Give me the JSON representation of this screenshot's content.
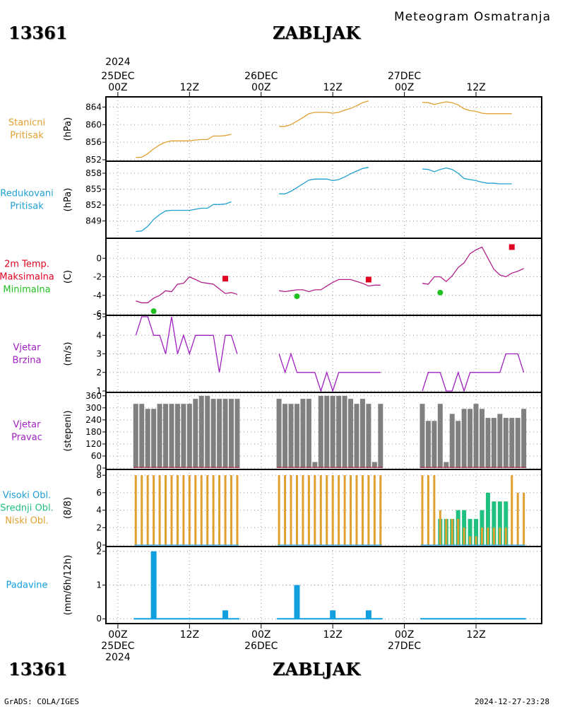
{
  "header": {
    "station_id": "13361",
    "station_name": "ZABLJAK",
    "subtitle": "Meteogram Osmatranja"
  },
  "footer": {
    "credit": "GrADS: COLA/IGES",
    "timestamp": "2024-12-27-23:28"
  },
  "colors": {
    "pressure": "#e0a030",
    "reduced": "#20a0d0",
    "max_temp": "#e00020",
    "min_temp": "#20c020",
    "wind": "#a020c0",
    "bars_gray": "#808080",
    "high_cloud": "#20a0d0",
    "mid_cloud": "#20c080",
    "low_cloud": "#e0a030",
    "precip": "#10a0e0"
  },
  "time_axis": {
    "top_year": "2024",
    "top_labels": [
      "25DEC\n00Z",
      "12Z",
      "26DEC\n00Z",
      "12Z",
      "27DEC\n00Z",
      "12Z"
    ],
    "bottom_labels": [
      "00Z\n25DEC\n2024",
      "12Z",
      "00Z\n26DEC",
      "12Z",
      "00Z\n27DEC",
      "12Z"
    ],
    "hours": [
      0,
      12,
      24,
      36,
      48,
      60
    ]
  },
  "chart_data": [
    {
      "id": "station_pressure",
      "type": "line",
      "label_lines": [
        "Stanicni",
        "Pritisak"
      ],
      "unit": "(hPa)",
      "ylim": [
        852,
        866
      ],
      "yticks": [
        852,
        856,
        860,
        864
      ],
      "series": [
        {
          "hours": [
            3,
            4,
            5,
            6,
            7,
            8,
            9,
            10,
            11,
            12,
            13,
            14,
            15,
            16,
            17,
            18,
            19,
            20,
            27,
            28,
            29,
            30,
            31,
            32,
            33,
            34,
            35,
            36,
            37,
            38,
            39,
            40,
            41,
            42,
            43,
            44,
            51,
            52,
            53,
            54,
            55,
            56,
            57,
            58,
            59,
            60,
            61,
            62,
            63,
            64,
            65,
            66,
            67,
            68
          ],
          "values": [
            852.5,
            852.6,
            853.4,
            854.5,
            855.4,
            856.0,
            856.3,
            856.3,
            856.3,
            856.3,
            856.5,
            856.6,
            856.6,
            857.4,
            857.4,
            857.5,
            857.8,
            null,
            859.6,
            859.6,
            860.0,
            860.8,
            861.6,
            862.5,
            862.8,
            862.8,
            862.8,
            862.6,
            862.8,
            863.3,
            863.7,
            864.3,
            865.0,
            865.4,
            null,
            null,
            865.1,
            865.0,
            864.6,
            864.9,
            865.2,
            865.0,
            864.5,
            863.6,
            863.2,
            863.0,
            862.6,
            862.5,
            862.5,
            862.5,
            862.5,
            862.5,
            null,
            null
          ]
        }
      ]
    },
    {
      "id": "reduced_pressure",
      "type": "line",
      "label_lines": [
        "Redukovani",
        "Pritisak"
      ],
      "unit": "(hPa)",
      "ylim": [
        846,
        860
      ],
      "yticks": [
        849,
        852,
        855,
        858
      ],
      "series": [
        {
          "hours": [
            3,
            4,
            5,
            6,
            7,
            8,
            9,
            10,
            11,
            12,
            13,
            14,
            15,
            16,
            17,
            18,
            19,
            20,
            27,
            28,
            29,
            30,
            31,
            32,
            33,
            34,
            35,
            36,
            37,
            38,
            39,
            40,
            41,
            42,
            43,
            44,
            51,
            52,
            53,
            54,
            55,
            56,
            57,
            58,
            59,
            60,
            61,
            62,
            63,
            64,
            65,
            66,
            67,
            68
          ],
          "values": [
            847.0,
            847.1,
            848.0,
            849.3,
            850.2,
            850.9,
            851.0,
            851.0,
            851.0,
            851.0,
            851.2,
            851.4,
            851.4,
            852.1,
            852.1,
            852.2,
            852.6,
            null,
            854.1,
            854.1,
            854.6,
            855.3,
            856.0,
            856.7,
            856.9,
            856.9,
            856.9,
            856.6,
            856.8,
            857.3,
            857.9,
            858.4,
            858.9,
            859.1,
            null,
            null,
            858.8,
            858.7,
            858.3,
            858.7,
            859.0,
            858.7,
            858.0,
            857.0,
            856.8,
            856.6,
            856.3,
            856.1,
            856.1,
            856.0,
            856.0,
            856.0,
            null,
            null
          ]
        }
      ]
    },
    {
      "id": "temperature",
      "type": "line",
      "label_lines": [
        "2m Temp.",
        "Maksimalna",
        "Minimalna"
      ],
      "unit": "(C)",
      "ylim": [
        -6,
        2
      ],
      "yticks": [
        -6,
        -4,
        -2,
        0
      ],
      "series": [
        {
          "hours": [
            3,
            4,
            5,
            6,
            7,
            8,
            9,
            10,
            11,
            12,
            13,
            14,
            15,
            16,
            17,
            18,
            19,
            20,
            27,
            28,
            29,
            30,
            31,
            32,
            33,
            34,
            35,
            36,
            37,
            38,
            39,
            40,
            41,
            42,
            43,
            44,
            51,
            52,
            53,
            54,
            55,
            56,
            57,
            58,
            59,
            60,
            61,
            62,
            63,
            64,
            65,
            66,
            67,
            68
          ],
          "values": [
            -4.6,
            -4.8,
            -4.8,
            -4.3,
            -4.0,
            -3.5,
            -3.6,
            -2.8,
            -2.7,
            -2.0,
            -2.3,
            -2.6,
            -2.7,
            -2.8,
            -3.3,
            -3.8,
            -3.7,
            -3.9,
            -3.5,
            -3.6,
            -3.5,
            -3.4,
            -3.4,
            -3.6,
            -3.4,
            -3.4,
            -3.0,
            -2.6,
            -2.3,
            -2.3,
            -2.3,
            -2.5,
            -2.7,
            -3.0,
            -2.9,
            -2.9,
            -2.7,
            -2.8,
            -2.0,
            -2.0,
            -2.5,
            -1.9,
            -1.0,
            -0.5,
            0.5,
            0.9,
            1.2,
            0.0,
            -1.2,
            -1.8,
            -2.0,
            -1.6,
            -1.4,
            -1.1
          ]
        }
      ],
      "max_points": [
        {
          "hour": 18,
          "value": -2.2
        },
        {
          "hour": 42,
          "value": -2.3
        },
        {
          "hour": 66,
          "value": 1.2
        }
      ],
      "min_points": [
        {
          "hour": 6,
          "value": -5.7
        },
        {
          "hour": 30,
          "value": -4.1
        },
        {
          "hour": 54,
          "value": -3.7
        }
      ]
    },
    {
      "id": "wind_speed",
      "type": "line",
      "label_lines": [
        "Vjetar",
        "Brzina"
      ],
      "unit": "(m/s)",
      "ylim": [
        1,
        5
      ],
      "yticks": [
        1,
        2,
        3,
        4,
        5
      ],
      "series": [
        {
          "hours": [
            3,
            4,
            5,
            6,
            7,
            8,
            9,
            10,
            11,
            12,
            13,
            14,
            15,
            16,
            17,
            18,
            19,
            20,
            27,
            28,
            29,
            30,
            31,
            32,
            33,
            34,
            35,
            36,
            37,
            38,
            39,
            40,
            41,
            42,
            43,
            44,
            51,
            52,
            53,
            54,
            55,
            56,
            57,
            58,
            59,
            60,
            61,
            62,
            63,
            64,
            65,
            66,
            67,
            68
          ],
          "values": [
            4,
            5,
            5,
            4,
            4,
            3,
            5,
            3,
            4,
            3,
            4,
            4,
            4,
            4,
            2,
            4,
            4,
            3,
            3,
            2,
            3,
            2,
            2,
            2,
            2,
            1,
            2,
            1,
            2,
            2,
            2,
            2,
            2,
            2,
            2,
            2,
            1,
            2,
            2,
            2,
            1,
            1,
            2,
            1,
            2,
            2,
            2,
            2,
            2,
            2,
            3,
            3,
            3,
            2
          ]
        }
      ]
    },
    {
      "id": "wind_direction",
      "type": "bar",
      "label_lines": [
        "Vjetar",
        "Pravac"
      ],
      "unit": "(stepeni)",
      "ylim": [
        0,
        370
      ],
      "yticks": [
        0,
        60,
        120,
        180,
        240,
        300,
        360
      ],
      "hours": [
        3,
        4,
        5,
        6,
        7,
        8,
        9,
        10,
        11,
        12,
        13,
        14,
        15,
        16,
        17,
        18,
        19,
        20,
        27,
        28,
        29,
        30,
        31,
        32,
        33,
        34,
        35,
        36,
        37,
        38,
        39,
        40,
        41,
        42,
        43,
        44,
        51,
        52,
        53,
        54,
        55,
        56,
        57,
        58,
        59,
        60,
        61,
        62,
        63,
        64,
        65,
        66,
        67,
        68
      ],
      "values": [
        320,
        320,
        295,
        295,
        320,
        320,
        320,
        320,
        320,
        320,
        345,
        360,
        360,
        345,
        345,
        345,
        345,
        345,
        345,
        320,
        320,
        320,
        345,
        345,
        30,
        360,
        360,
        360,
        360,
        360,
        345,
        320,
        345,
        320,
        30,
        320,
        320,
        235,
        235,
        320,
        30,
        270,
        235,
        295,
        295,
        320,
        295,
        250,
        250,
        270,
        250,
        250,
        250,
        295
      ]
    },
    {
      "id": "cloud_cover",
      "type": "bar",
      "label_lines": [
        "Visoki Obl.",
        "Srednji Obl.",
        "Niski Obl."
      ],
      "unit": "(8/8)",
      "ylim": [
        0,
        8.5
      ],
      "yticks": [
        0,
        2,
        4,
        6,
        8
      ],
      "hours": [
        3,
        4,
        5,
        6,
        7,
        8,
        9,
        10,
        11,
        12,
        13,
        14,
        15,
        16,
        17,
        18,
        19,
        20,
        27,
        28,
        29,
        30,
        31,
        32,
        33,
        34,
        35,
        36,
        37,
        38,
        39,
        40,
        41,
        42,
        43,
        44,
        51,
        52,
        53,
        54,
        55,
        56,
        57,
        58,
        59,
        60,
        61,
        62,
        63,
        64,
        65,
        66,
        67,
        68
      ],
      "low": [
        8,
        8,
        8,
        8,
        8,
        8,
        8,
        8,
        8,
        8,
        8,
        8,
        8,
        8,
        8,
        8,
        8,
        8,
        8,
        8,
        8,
        8,
        8,
        8,
        8,
        8,
        8,
        8,
        8,
        8,
        8,
        8,
        8,
        8,
        8,
        8,
        8,
        8,
        8,
        4,
        3,
        3,
        3,
        2,
        1,
        1,
        2,
        2,
        2,
        2,
        2,
        8,
        6,
        6
      ],
      "mid": [
        0,
        0,
        0,
        0,
        0,
        0,
        0,
        0,
        0,
        0,
        0,
        0,
        0,
        0,
        0,
        0,
        0,
        0,
        0,
        0,
        0,
        0,
        0,
        0,
        0,
        0,
        0,
        0,
        0,
        0,
        0,
        0,
        0,
        0,
        0,
        0,
        0,
        0,
        0,
        3,
        3,
        3,
        4,
        4,
        3,
        3,
        4,
        6,
        5,
        5,
        5,
        0,
        0,
        0
      ]
    },
    {
      "id": "precipitation",
      "type": "bar",
      "label_lines": [
        "Padavine"
      ],
      "unit": "(mm/6h/12h)",
      "ylim": [
        -0.1,
        2.1
      ],
      "yticks": [
        0,
        1,
        2
      ],
      "hours": [
        6,
        18,
        30,
        36,
        42
      ],
      "values": [
        2.0,
        0.25,
        1.0,
        0.25,
        0.25
      ]
    }
  ]
}
